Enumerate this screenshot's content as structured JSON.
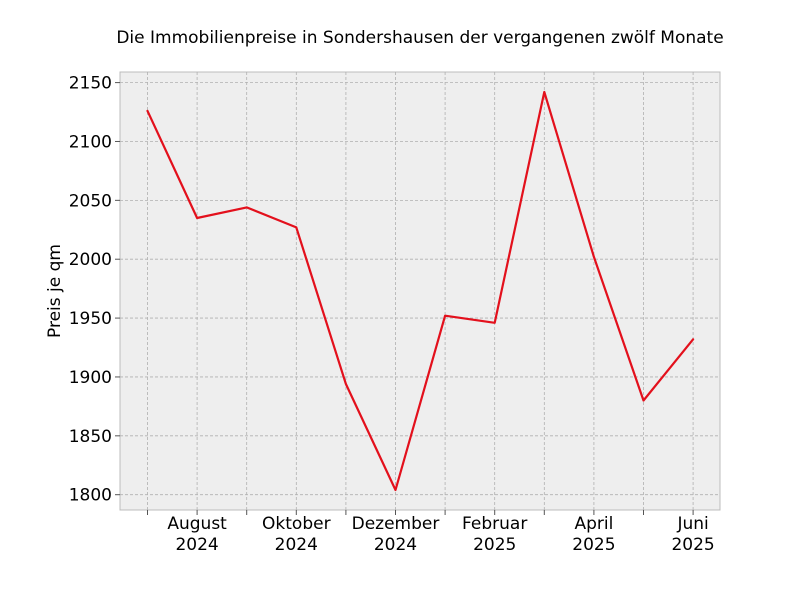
{
  "chart_data": {
    "type": "line",
    "title": "Die Immobilienpreise in Sondershausen der vergangenen zwölf Monate",
    "xlabel": "",
    "ylabel": "Preis je qm",
    "x": [
      "2024-07",
      "2024-08",
      "2024-09",
      "2024-10",
      "2024-11",
      "2024-12",
      "2025-01",
      "2025-02",
      "2025-03",
      "2025-04",
      "2025-05",
      "2025-06"
    ],
    "series": [
      {
        "values": [
          2126,
          2035,
          2044,
          2027,
          1894,
          1804,
          1952,
          1946,
          2142,
          2002,
          1880,
          1932
        ]
      }
    ],
    "ylim": [
      1787,
      2159
    ],
    "yticks": [
      1800,
      1850,
      1900,
      1950,
      2000,
      2050,
      2100,
      2150
    ],
    "xticks": [
      {
        "x": "2024-08",
        "line1": "August",
        "line2": "2024"
      },
      {
        "x": "2024-10",
        "line1": "Oktober",
        "line2": "2024"
      },
      {
        "x": "2024-12",
        "line1": "Dezember",
        "line2": "2024"
      },
      {
        "x": "2025-02",
        "line1": "Februar",
        "line2": "2025"
      },
      {
        "x": "2025-04",
        "line1": "April",
        "line2": "2025"
      },
      {
        "x": "2025-06",
        "line1": "Juni",
        "line2": "2025"
      }
    ],
    "grid": true,
    "colors": {
      "line": "#e3101c",
      "plot_background": "#eeeeee",
      "frame": "#bcbcbc"
    }
  }
}
